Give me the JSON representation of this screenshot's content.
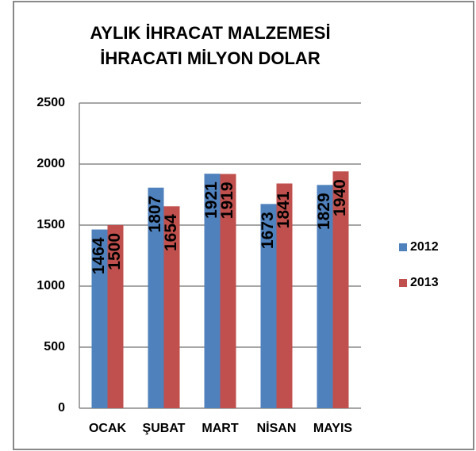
{
  "chart_data": {
    "type": "bar",
    "title": [
      "AYLIK İHRACAT MALZEMESİ",
      "İHRACATI MİLYON DOLAR"
    ],
    "categories": [
      "OCAK",
      "ŞUBAT",
      "MART",
      "NİSAN",
      "MAYIS"
    ],
    "series": [
      {
        "name": "2012",
        "color": "#4f81bd",
        "values": [
          1464,
          1807,
          1921,
          1673,
          1829
        ]
      },
      {
        "name": "2013",
        "color": "#c0504d",
        "values": [
          1500,
          1654,
          1919,
          1841,
          1940
        ]
      }
    ],
    "ylim": [
      0,
      2500
    ],
    "yticks": [
      0,
      500,
      1000,
      1500,
      2000,
      2500
    ],
    "grid": true,
    "legend": "right"
  }
}
